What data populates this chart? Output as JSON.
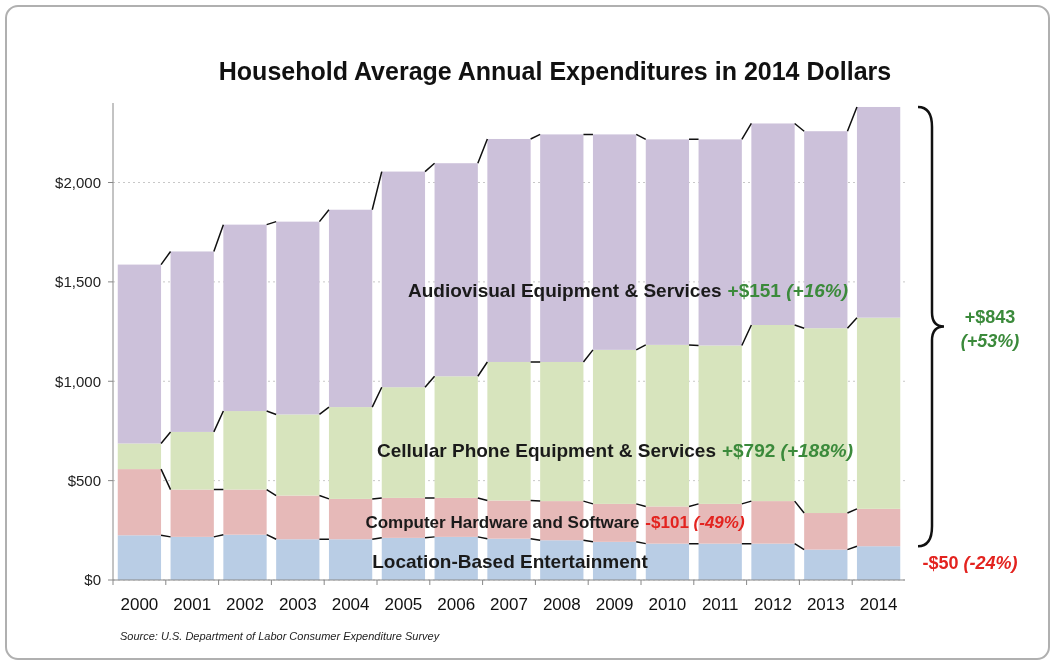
{
  "chart_data": {
    "type": "bar",
    "stacked": true,
    "title": "Household Average Annual Expenditures in 2014 Dollars",
    "categories": [
      "2000",
      "2001",
      "2002",
      "2003",
      "2004",
      "2005",
      "2006",
      "2007",
      "2008",
      "2009",
      "2010",
      "2011",
      "2012",
      "2013",
      "2014"
    ],
    "series": [
      {
        "name": "Location-Based Entertainment",
        "color": "#b9cde5",
        "values": [
          225,
          217,
          228,
          205,
          205,
          212,
          217,
          208,
          200,
          192,
          183,
          183,
          183,
          153,
          170
        ]
      },
      {
        "name": "Computer Hardware and Software",
        "color": "#e6b9b8",
        "values": [
          333,
          238,
          227,
          220,
          203,
          201,
          196,
          192,
          197,
          191,
          187,
          200,
          214,
          184,
          188
        ]
      },
      {
        "name": "Cellular Phone Equipment & Services",
        "color": "#d7e4bd",
        "values": [
          129,
          290,
          395,
          408,
          462,
          557,
          612,
          697,
          700,
          775,
          813,
          797,
          886,
          930,
          962
        ]
      },
      {
        "name": "Audiovisual Equipment & Services",
        "color": "#ccc1da",
        "values": [
          900,
          908,
          938,
          970,
          993,
          1085,
          1072,
          1122,
          1145,
          1084,
          1034,
          1037,
          1014,
          991,
          1060
        ]
      }
    ],
    "ylim": [
      0,
      2400
    ],
    "yticks": [
      {
        "value": 0,
        "label": "$0"
      },
      {
        "value": 500,
        "label": "$500"
      },
      {
        "value": 1000,
        "label": "$1,000"
      },
      {
        "value": 1500,
        "label": "$1,500"
      },
      {
        "value": 2000,
        "label": "$2,000"
      }
    ],
    "grid": "y",
    "annotations": [
      "+$151 (+16%)",
      "+$792 (+188%)",
      "-$101 (-49%)",
      "-$50 (-24%)",
      "+$843 (+53%)",
      "Source: U.S. Department of Labor Consumer Expenditure Survey"
    ]
  }
}
